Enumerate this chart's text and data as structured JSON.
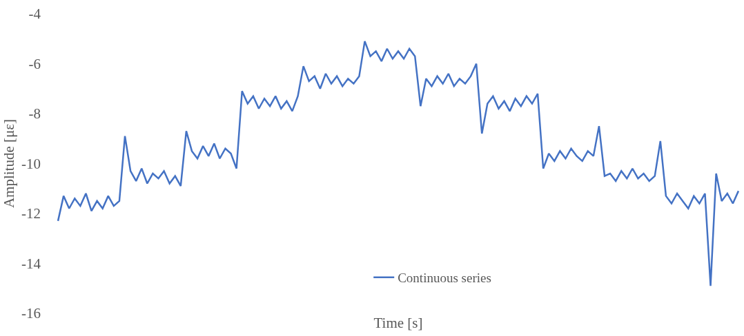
{
  "chart_data": {
    "type": "line",
    "xlabel": "Time [s]",
    "ylabel": "Amplitude [με]",
    "categories": [
      null,
      null,
      null,
      null,
      null,
      null,
      null,
      null,
      null,
      null,
      null,
      null,
      null,
      null,
      null,
      null,
      null,
      null,
      null,
      null,
      null,
      null,
      null,
      null,
      null,
      null,
      null,
      null,
      null,
      null,
      null,
      null,
      null,
      null,
      null,
      null,
      null,
      null,
      null,
      null,
      null,
      null,
      null,
      null,
      null,
      null,
      null,
      null,
      null,
      null,
      null,
      null,
      null,
      null,
      null,
      null,
      null,
      null,
      null,
      null,
      null,
      null,
      null,
      null,
      null,
      null,
      null,
      null,
      null,
      null,
      null,
      null,
      null,
      null,
      null,
      null,
      null,
      null,
      null,
      null,
      null,
      null,
      null,
      null,
      null,
      null,
      null,
      null,
      null,
      null,
      null,
      null,
      null,
      null,
      null,
      null,
      null,
      null,
      null,
      null,
      null,
      null,
      null,
      null,
      null,
      null,
      null,
      null,
      null,
      null,
      null,
      null,
      null,
      null,
      null,
      null,
      null,
      null,
      null,
      null,
      null,
      null,
      null
    ],
    "series": [
      {
        "name": "Continuous series",
        "color": "#4472c4",
        "values": [
          -12.3,
          -11.3,
          -11.8,
          -11.4,
          -11.7,
          -11.2,
          -11.9,
          -11.5,
          -11.8,
          -11.3,
          -11.7,
          -11.5,
          -8.9,
          -10.3,
          -10.7,
          -10.2,
          -10.8,
          -10.4,
          -10.6,
          -10.3,
          -10.8,
          -10.5,
          -10.9,
          -8.7,
          -9.5,
          -9.8,
          -9.3,
          -9.7,
          -9.2,
          -9.8,
          -9.4,
          -9.6,
          -10.2,
          -7.1,
          -7.6,
          -7.3,
          -7.8,
          -7.4,
          -7.7,
          -7.3,
          -7.8,
          -7.5,
          -7.9,
          -7.3,
          -6.1,
          -6.7,
          -6.5,
          -7.0,
          -6.4,
          -6.8,
          -6.5,
          -6.9,
          -6.6,
          -6.8,
          -6.5,
          -5.1,
          -5.7,
          -5.5,
          -5.9,
          -5.4,
          -5.8,
          -5.5,
          -5.8,
          -5.4,
          -5.7,
          -7.7,
          -6.6,
          -6.9,
          -6.5,
          -6.8,
          -6.4,
          -6.9,
          -6.6,
          -6.8,
          -6.5,
          -6.0,
          -8.8,
          -7.6,
          -7.3,
          -7.8,
          -7.5,
          -7.9,
          -7.4,
          -7.7,
          -7.3,
          -7.6,
          -7.2,
          -10.2,
          -9.6,
          -9.9,
          -9.5,
          -9.8,
          -9.4,
          -9.7,
          -9.9,
          -9.5,
          -9.7,
          -8.5,
          -10.5,
          -10.4,
          -10.7,
          -10.3,
          -10.6,
          -10.2,
          -10.6,
          -10.4,
          -10.7,
          -10.5,
          -9.1,
          -11.3,
          -11.6,
          -11.2,
          -11.5,
          -11.8,
          -11.3,
          -11.6,
          -11.2,
          -14.9,
          -10.4,
          -11.5,
          -11.2,
          -11.6,
          -11.1
        ]
      }
    ],
    "ylim": [
      -16,
      -4
    ],
    "yticks": [
      -16,
      -14,
      -12,
      -10,
      -8,
      -6,
      -4
    ],
    "tick_labels": "y",
    "legend": "bottom",
    "marker": "none",
    "line_style": "solid"
  }
}
